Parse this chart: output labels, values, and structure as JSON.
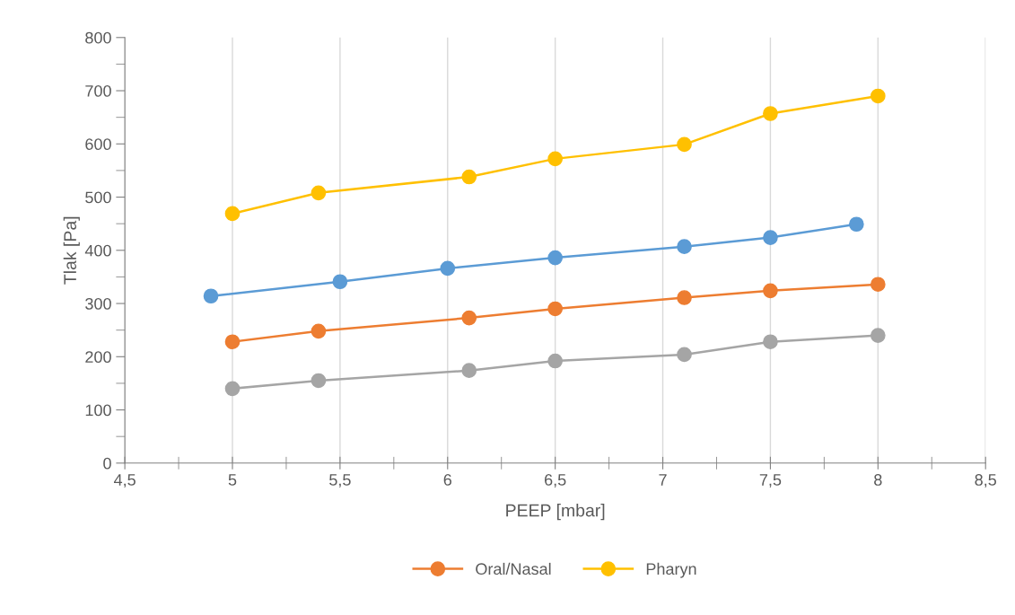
{
  "chart_data": {
    "type": "line",
    "xlabel": "PEEP [mbar]",
    "ylabel": "Tlak [Pa]",
    "xlim": [
      4.5,
      8.5
    ],
    "xticks": [
      {
        "value": 4.5,
        "label": "4,5"
      },
      5,
      {
        "value": 5.5,
        "label": "5,5"
      },
      6,
      {
        "value": 6.5,
        "label": "6,5"
      },
      7,
      {
        "value": 7.5,
        "label": "7,5"
      },
      8,
      {
        "value": 8.5,
        "label": "8,5"
      }
    ],
    "ylim": [
      0,
      800
    ],
    "yticks": [
      0,
      100,
      200,
      300,
      400,
      500,
      600,
      700,
      800
    ],
    "grid": "x",
    "legend": "bottom",
    "marker": "circle",
    "line_style": "solid",
    "series": [
      {
        "color": "#5b9bd5",
        "x": [
          4.9,
          5.5,
          6.0,
          6.5,
          7.1,
          7.5,
          7.9
        ],
        "values": [
          314,
          341,
          366,
          386,
          407,
          424,
          449
        ]
      },
      {
        "name": "Oral/Nasal",
        "color": "#ed7d31",
        "x": [
          5,
          5.4,
          6.1,
          6.5,
          7.1,
          7.5,
          8
        ],
        "values": [
          228,
          248,
          273,
          290,
          311,
          324,
          336
        ]
      },
      {
        "color": "#a5a5a5",
        "x": [
          5,
          5.4,
          6.1,
          6.5,
          7.1,
          7.5,
          8
        ],
        "values": [
          140,
          155,
          174,
          192,
          204,
          228,
          240
        ]
      },
      {
        "name": "Pharyn",
        "color": "#ffc000",
        "x": [
          5,
          5.4,
          6.1,
          6.5,
          7.1,
          7.5,
          8
        ],
        "values": [
          469,
          508,
          538,
          572,
          599,
          657,
          690
        ]
      }
    ]
  }
}
